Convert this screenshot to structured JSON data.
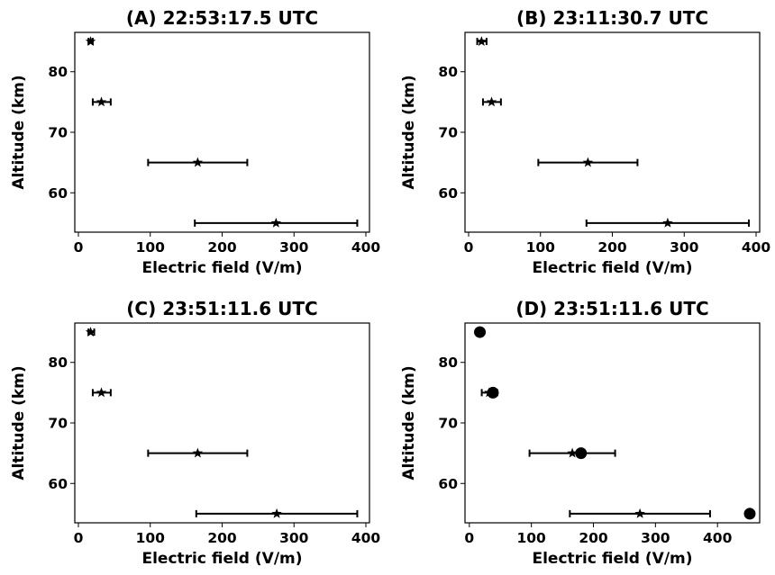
{
  "chart_data": [
    {
      "type": "scatter",
      "title": "(A)  22:53:17.5 UTC",
      "xlabel": "Electric field (V/m)",
      "ylabel": "Altitude (km)",
      "xlim": [
        -5,
        405
      ],
      "ylim": [
        53.5,
        86.5
      ],
      "xticks": [
        0,
        100,
        200,
        300,
        400
      ],
      "yticks": [
        60,
        70,
        80
      ],
      "series": [
        {
          "marker": "star",
          "color": "#000000",
          "points": [
            {
              "x": 17,
              "y": 85,
              "xerr": [
                14,
                20
              ]
            },
            {
              "x": 32,
              "y": 75,
              "xerr": [
                20,
                45
              ]
            },
            {
              "x": 166,
              "y": 65,
              "xerr": [
                97,
                235
              ]
            },
            {
              "x": 275,
              "y": 55,
              "xerr": [
                162,
                388
              ]
            }
          ]
        }
      ]
    },
    {
      "type": "scatter",
      "title": "(B)  23:11:30.7 UTC",
      "xlabel": "Electric field (V/m)",
      "ylabel": "Altitude (km)",
      "xlim": [
        -5,
        405
      ],
      "ylim": [
        53.5,
        86.5
      ],
      "xticks": [
        0,
        100,
        200,
        300,
        400
      ],
      "yticks": [
        60,
        70,
        80
      ],
      "series": [
        {
          "marker": "star",
          "color": "#000000",
          "points": [
            {
              "x": 18,
              "y": 85,
              "xerr": [
                12,
                25
              ]
            },
            {
              "x": 32,
              "y": 75,
              "xerr": [
                20,
                45
              ]
            },
            {
              "x": 166,
              "y": 65,
              "xerr": [
                97,
                235
              ]
            },
            {
              "x": 277,
              "y": 55,
              "xerr": [
                164,
                390
              ]
            }
          ]
        }
      ]
    },
    {
      "type": "scatter",
      "title": "(C)  23:51:11.6 UTC",
      "xlabel": "Electric field (V/m)",
      "ylabel": "Altitude (km)",
      "xlim": [
        -5,
        405
      ],
      "ylim": [
        53.5,
        86.5
      ],
      "xticks": [
        0,
        100,
        200,
        300,
        400
      ],
      "yticks": [
        60,
        70,
        80
      ],
      "series": [
        {
          "marker": "star",
          "color": "#000000",
          "points": [
            {
              "x": 17,
              "y": 85,
              "xerr": [
                14,
                22
              ]
            },
            {
              "x": 32,
              "y": 75,
              "xerr": [
                20,
                45
              ]
            },
            {
              "x": 166,
              "y": 65,
              "xerr": [
                97,
                235
              ]
            },
            {
              "x": 276,
              "y": 55,
              "xerr": [
                164,
                388
              ]
            }
          ]
        }
      ]
    },
    {
      "type": "scatter",
      "title": "(D)  23:51:11.6 UTC",
      "xlabel": "Electric field (V/m)",
      "ylabel": "Altitude (km)",
      "xlim": [
        -7,
        468
      ],
      "ylim": [
        53.5,
        86.5
      ],
      "xticks": [
        0,
        100,
        200,
        300,
        400
      ],
      "yticks": [
        60,
        70,
        80
      ],
      "series": [
        {
          "marker": "star",
          "color": "#000000",
          "points": [
            {
              "x": 17,
              "y": 85,
              "xerr": [
                14,
                22
              ]
            },
            {
              "x": 32,
              "y": 75,
              "xerr": [
                20,
                45
              ]
            },
            {
              "x": 166,
              "y": 65,
              "xerr": [
                97,
                235
              ]
            },
            {
              "x": 275,
              "y": 55,
              "xerr": [
                162,
                388
              ]
            }
          ]
        },
        {
          "marker": "circle",
          "color": "#000000",
          "points": [
            {
              "x": 17,
              "y": 85
            },
            {
              "x": 38,
              "y": 75
            },
            {
              "x": 180,
              "y": 65
            },
            {
              "x": 452,
              "y": 55
            }
          ]
        }
      ]
    }
  ]
}
